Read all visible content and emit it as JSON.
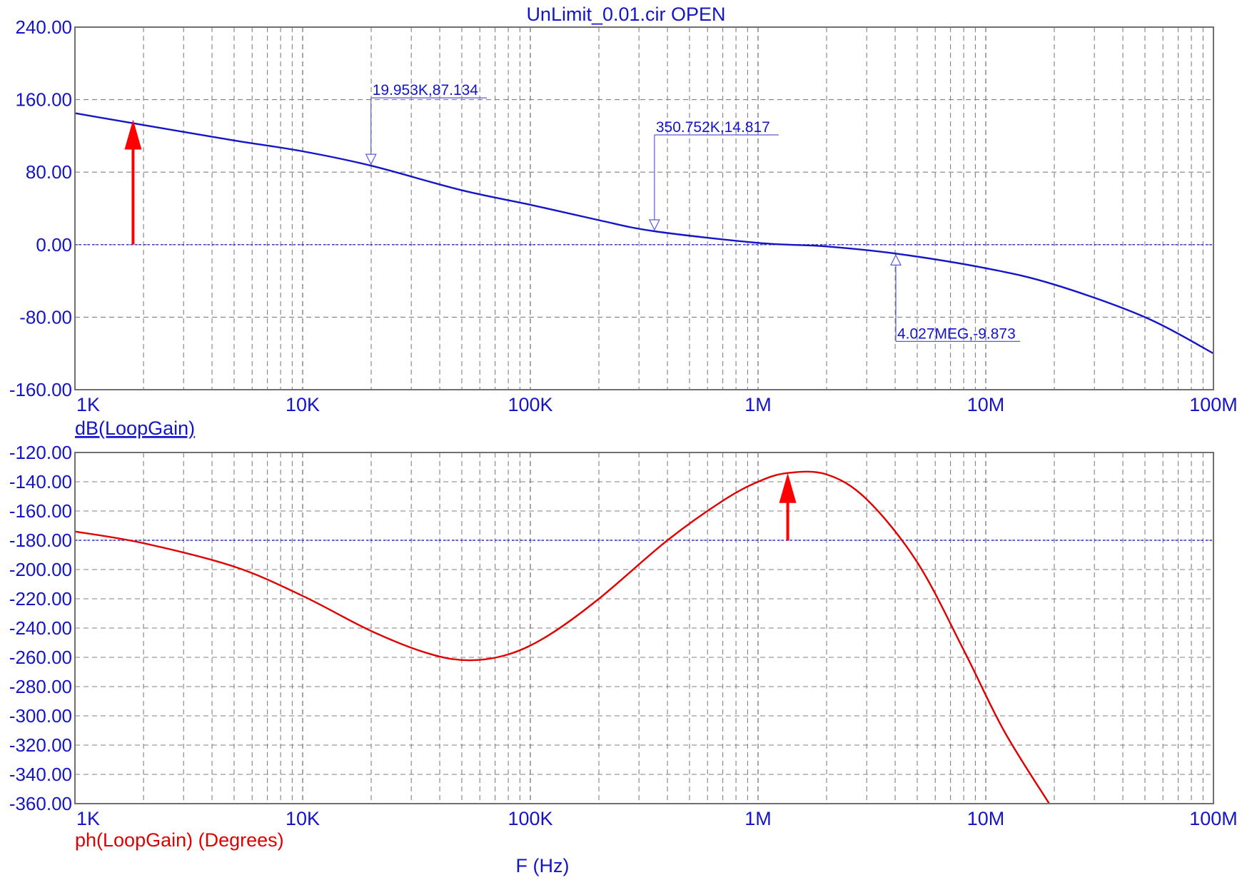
{
  "window_title": "UnLimit_0.01.cir OPEN",
  "colors": {
    "magnitude": "#1414c8",
    "phase": "#e00000",
    "grid": "#808080",
    "axis_text": "#1414c8"
  },
  "chart_data": [
    {
      "type": "line",
      "title": "UnLimit_0.01.cir OPEN",
      "xscale": "log",
      "xlim": [
        1000,
        100000000
      ],
      "ylim": [
        -160,
        240
      ],
      "xticks": [
        "1K",
        "10K",
        "100K",
        "1M",
        "10M",
        "100M"
      ],
      "yticks": [
        "240.00",
        "160.00",
        "80.00",
        "0.00",
        "-80.00",
        "-160.00"
      ],
      "ylabel": "dB(LoopGain)",
      "grid": true,
      "reference_line": 0,
      "series": [
        {
          "name": "dB(LoopGain)",
          "x": [
            1000,
            2000,
            5000,
            10000,
            19953,
            50000,
            100000,
            200000,
            350752,
            1000000,
            2000000,
            4027000,
            10000000,
            20000000,
            50000000,
            100000000
          ],
          "y": [
            145,
            132,
            115,
            103,
            87.134,
            60,
            44,
            27,
            14.817,
            2,
            -2,
            -9.873,
            -26,
            -44,
            -80,
            -120
          ]
        }
      ],
      "cursors": [
        {
          "label": "19.953K,87.134",
          "x": 19953,
          "y": 87.134
        },
        {
          "label": "350.752K,14.817",
          "x": 350752,
          "y": 14.817
        },
        {
          "label": "4.027MEG,-9.873",
          "x": 4027000,
          "y": -9.873
        }
      ],
      "marker": {
        "x": 1800,
        "from": 0,
        "to": 138
      }
    },
    {
      "type": "line",
      "xscale": "log",
      "xlim": [
        1000,
        100000000
      ],
      "ylim": [
        -360,
        -120
      ],
      "xticks": [
        "1K",
        "10K",
        "100K",
        "1M",
        "10M",
        "100M"
      ],
      "yticks": [
        "-120.00",
        "-140.00",
        "-160.00",
        "-180.00",
        "-200.00",
        "-220.00",
        "-240.00",
        "-260.00",
        "-280.00",
        "-300.00",
        "-320.00",
        "-340.00",
        "-360.00"
      ],
      "ylabel": "ph(LoopGain) (Degrees)",
      "xlabel": "F (Hz)",
      "grid": true,
      "reference_line": -180,
      "series": [
        {
          "name": "ph(LoopGain) (Degrees)",
          "x": [
            1000,
            2000,
            5000,
            10000,
            20000,
            35000,
            53000,
            80000,
            120000,
            200000,
            400000,
            700000,
            1000000,
            1350000,
            2000000,
            3000000,
            5000000,
            8000000,
            12000000,
            19000000
          ],
          "y": [
            -174,
            -182,
            -198,
            -218,
            -242,
            -257,
            -262,
            -258,
            -245,
            -220,
            -180,
            -153,
            -140,
            -134,
            -135,
            -152,
            -195,
            -255,
            -310,
            -360
          ]
        }
      ],
      "marker": {
        "x": 1350000,
        "from": -180,
        "to": -134
      }
    }
  ]
}
